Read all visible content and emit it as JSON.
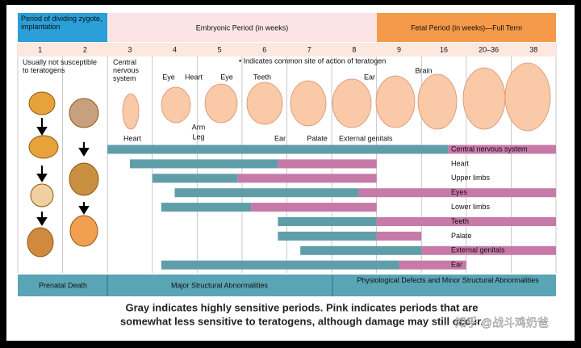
{
  "header": {
    "zygote": "Period of dividing zygote, implantation",
    "embryonic": "Embryonic Period (in weeks)",
    "fetal": "Fetal Period (in weeks)—Full Term"
  },
  "weeks": [
    "1",
    "2",
    "3",
    "4",
    "5",
    "6",
    "7",
    "8",
    "9",
    "16",
    "20–36",
    "38"
  ],
  "notes": {
    "not_susceptible": "Usually not susceptible to teratogens",
    "cns": "Central nervous system",
    "legend": "• Indicates common site of action of teratogen"
  },
  "embryo_labels": [
    "Heart",
    "Eye",
    "Heart",
    "Eye",
    "Arm",
    "Leg",
    "Teeth",
    "Ear",
    "Palate",
    "Ear",
    "External genitals",
    "Brain"
  ],
  "rows": [
    {
      "label": "Central nervous system",
      "gray_start": 2.0,
      "gray_end": 9.6,
      "pink_end": 12
    },
    {
      "label": "Heart",
      "gray_start": 2.5,
      "gray_end": 5.8,
      "pink_end": 8
    },
    {
      "label": "Upper limbs",
      "gray_start": 3.0,
      "gray_end": 4.9,
      "pink_end": 8
    },
    {
      "label": "Eyes",
      "gray_start": 3.5,
      "gray_end": 7.6,
      "pink_end": 12
    },
    {
      "label": "Lower limbs",
      "gray_start": 3.2,
      "gray_end": 5.2,
      "pink_end": 8
    },
    {
      "label": "Teeth",
      "gray_start": 5.8,
      "gray_end": 8,
      "pink_end": 12
    },
    {
      "label": "Palate",
      "gray_start": 5.8,
      "gray_end": 8,
      "pink_end": 9
    },
    {
      "label": "External genitals",
      "gray_start": 6.3,
      "gray_end": 9,
      "pink_end": 12
    },
    {
      "label": "Ear",
      "gray_start": 3.2,
      "gray_end": 8.5,
      "pink_end": 10
    }
  ],
  "outcomes": [
    "Prenatal Death",
    "Major Structural Abnormalities",
    "Physiological Defects and Minor Structural Abnormalities"
  ],
  "caption": [
    "Gray indicates highly sensitive periods. Pink indicates periods that are",
    "somewhat less sensitive to teratogens, although damage may still occur."
  ],
  "watermark": "知乎 @战斗鸡奶爸"
}
